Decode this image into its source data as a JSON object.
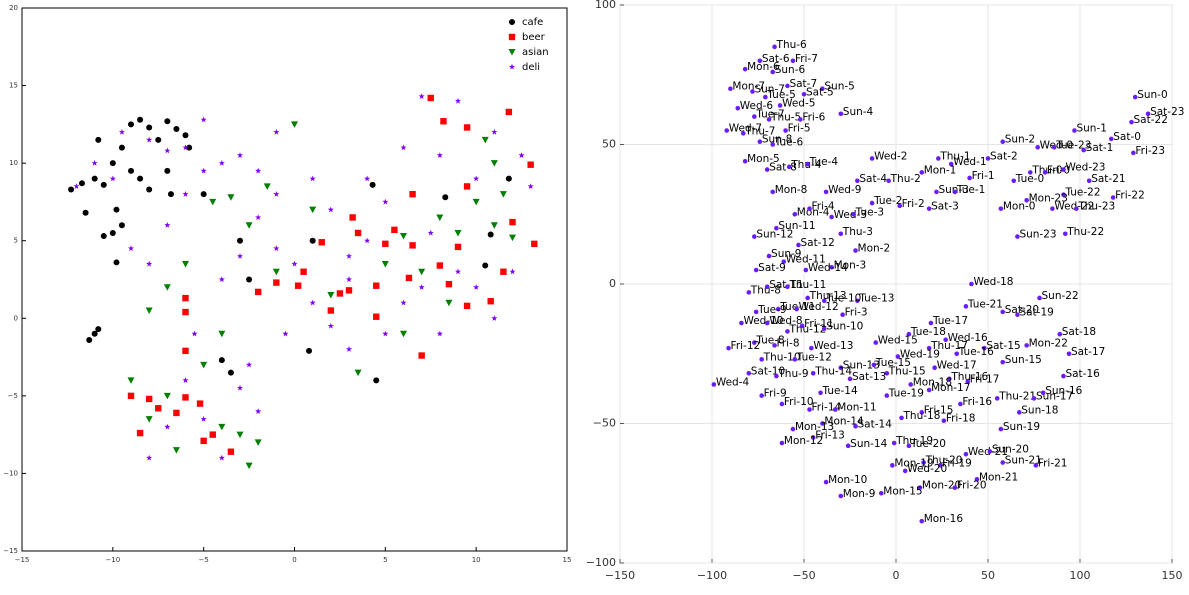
{
  "chart_data": [
    {
      "type": "scatter",
      "legend": "upper right",
      "grid": false,
      "xlim": [
        -15,
        15
      ],
      "ylim": [
        -15,
        20
      ],
      "xticks": [
        {
          "value": -15,
          "label": "−15"
        },
        {
          "value": -10,
          "label": "−10"
        },
        {
          "value": -5,
          "label": "−5"
        },
        0,
        5,
        10,
        15
      ],
      "yticks": [
        {
          "value": -15,
          "label": "−15"
        },
        {
          "value": -10,
          "label": "−10"
        },
        {
          "value": -5,
          "label": "−5"
        },
        0,
        5,
        10,
        15,
        20
      ],
      "series": [
        {
          "name": "cafe",
          "color": "#000000",
          "marker": "circle",
          "x": [
            -12.3,
            -11.7,
            -11,
            -10.5,
            -10,
            -9.5,
            -9,
            -8.5,
            -8,
            -7.5,
            -7,
            -6.5,
            -6,
            -5.8,
            -9.8,
            -9.5,
            -10,
            -8.5,
            -8,
            -7,
            -6.8,
            -9,
            -10.8,
            -11.5,
            -10.5,
            -9.8,
            -11,
            -11.3,
            -10.8,
            -5,
            -3.5,
            4.5,
            0.8,
            4.3,
            10.8,
            11.8,
            10.5,
            -3,
            1,
            -2.5,
            8.3,
            -4
          ],
          "y": [
            8.3,
            8.7,
            9,
            8.6,
            10,
            11,
            12.5,
            12.8,
            12.3,
            11.5,
            12.7,
            12.2,
            11.8,
            11,
            7,
            6,
            5.5,
            9,
            8.3,
            9.5,
            8,
            9.5,
            11.5,
            6.8,
            5.3,
            3.6,
            -1,
            -1.4,
            -0.7,
            8,
            -3.5,
            -4,
            -2.1,
            8.6,
            5.4,
            9,
            3.4,
            5,
            5,
            2.5,
            7.8,
            -2.7
          ]
        },
        {
          "name": "beer",
          "color": "#ff0000",
          "marker": "square",
          "x": [
            -9,
            -8.5,
            -8,
            -7.5,
            -6.5,
            -6,
            -5.2,
            -5,
            -4.5,
            -3.5,
            -6,
            -6,
            -6,
            -2,
            -1,
            0.2,
            0.5,
            1.5,
            2.5,
            3.2,
            3.5,
            4.5,
            5,
            5.5,
            6.3,
            6.5,
            7.5,
            8.2,
            9.5,
            11.8,
            13,
            12,
            13.2,
            11.5,
            10.8,
            9.5,
            8.5,
            8,
            9,
            6.5,
            7,
            4.5,
            2,
            3,
            9.5
          ],
          "y": [
            -5,
            -7.4,
            -5.2,
            -5.8,
            -6.1,
            -5.1,
            -5.5,
            -7.9,
            -7.5,
            -8.6,
            -2.1,
            0.4,
            1.3,
            1.7,
            2.3,
            2.1,
            3,
            4.9,
            1.6,
            6.5,
            5.5,
            2.1,
            4.8,
            5.7,
            2.6,
            4.7,
            14.2,
            12.7,
            12.3,
            13.3,
            9.9,
            6.2,
            4.8,
            3,
            1.1,
            0.8,
            2.2,
            3.4,
            4.6,
            8,
            -2.4,
            0.1,
            0.5,
            1.8,
            8.5
          ]
        },
        {
          "name": "asian",
          "color": "#008000",
          "marker": "triangle_down",
          "x": [
            -9,
            -8,
            -7,
            -6.5,
            -5,
            -4,
            -3,
            -2.5,
            -2,
            -6,
            -7,
            -8,
            -4.5,
            -3.5,
            -2.5,
            -1.5,
            0,
            1,
            2,
            3.5,
            5,
            6,
            7,
            8.5,
            9,
            10,
            10.5,
            11,
            11.5,
            12,
            11,
            8,
            6,
            -1,
            -4
          ],
          "y": [
            -4,
            -6.5,
            -5,
            -8.5,
            -3,
            -7,
            -7.5,
            -9.5,
            -8,
            3.5,
            2,
            0.5,
            7.5,
            7.8,
            6,
            8.5,
            12.5,
            7,
            1.5,
            -3.5,
            3.5,
            5.3,
            3,
            1,
            5.5,
            7.5,
            11.5,
            10,
            8,
            5.2,
            6,
            6.5,
            -1,
            3,
            -1
          ]
        },
        {
          "name": "deli",
          "color": "#7f00ff",
          "marker": "star",
          "x": [
            -12,
            -11,
            -10,
            -9.5,
            -8,
            -7,
            -6,
            -5,
            -9,
            -8,
            -7,
            -6,
            -5,
            -4,
            -3,
            -2,
            -1,
            -2,
            -3,
            -4,
            -5.5,
            -6,
            -7,
            -8,
            -5,
            -4,
            -3,
            -2,
            -1,
            0,
            1,
            2,
            3,
            4,
            5,
            6,
            7,
            8,
            9,
            10,
            11,
            12,
            13,
            12.5,
            11,
            9,
            7,
            8,
            10,
            6,
            4,
            3,
            1,
            -1,
            2,
            5,
            7.5,
            3,
            -0.5,
            -2.5
          ],
          "y": [
            8.5,
            10,
            9,
            12,
            11.5,
            10.8,
            11,
            12.8,
            4.5,
            3.5,
            6,
            8,
            9.5,
            10,
            10.5,
            9.5,
            8,
            6.5,
            4,
            2.5,
            -1,
            -4,
            -7,
            -9,
            -6.5,
            -9,
            -4.5,
            -6,
            4.5,
            3.5,
            1,
            -0.5,
            2.5,
            5,
            -1,
            1,
            2,
            -1,
            3,
            2,
            0,
            3,
            8.5,
            10.5,
            12,
            14,
            14.3,
            10.5,
            9,
            11,
            9,
            4,
            9,
            12,
            7,
            7.5,
            5.5,
            -2,
            -1,
            -3
          ]
        }
      ]
    },
    {
      "type": "scatter",
      "grid": true,
      "color": "#6a1cff",
      "xlim": [
        -150,
        150
      ],
      "ylim": [
        -100,
        100
      ],
      "xticks": [
        {
          "value": -150,
          "label": "−150"
        },
        {
          "value": -100,
          "label": "−100"
        },
        {
          "value": -50,
          "label": "−50"
        },
        0,
        50,
        100,
        150
      ],
      "yticks": [
        {
          "value": -100,
          "label": "−100"
        },
        {
          "value": -50,
          "label": "−50"
        },
        0,
        50,
        100
      ],
      "labels": [
        "Thu-6",
        "Sat-6",
        "Fri-7",
        "Mon-6",
        "Sun-6",
        "Mon-7",
        "Sat-7",
        "Sun-5",
        "Sun-7",
        "Tue-5",
        "Sat-5",
        "Wed-6",
        "Wed-5",
        "Tue-7",
        "Sun-4",
        "Thu-5",
        "Fri-6",
        "Wed-7",
        "Thu-7",
        "Fri-5",
        "Sun-8",
        "Tue-6",
        "Mon-5",
        "Sat-8",
        "Thu-4",
        "Tue-4",
        "Wed-2",
        "Thu-1",
        "Wed-1",
        "Mon-1",
        "Sat-2",
        "Sun-2",
        "Fri-1",
        "Tue-0",
        "Thu-0",
        "Fri-0",
        "Wed-0",
        "Tue-23",
        "Sat-1",
        "Sun-1",
        "Sat-0",
        "Fri-23",
        "Sun-0",
        "Sat-23",
        "Sat-22",
        "Wed-23",
        "Sat-21",
        "Tue-22",
        "Fri-22",
        "Mon-23",
        "Wed-22",
        "Thu-23",
        "Mon-0",
        "Sun-23",
        "Thu-22",
        "Mon-8",
        "Wed-9",
        "Sat-4",
        "Thu-2",
        "Sun-3",
        "Tue-1",
        "Tue-2",
        "Fri-2",
        "Sat-3",
        "Mon-4",
        "Fri-4",
        "Wed-3",
        "Tue-3",
        "Sun-11",
        "Sun-12",
        "Thu-3",
        "Sat-12",
        "Mon-2",
        "Sun-9",
        "Wed-11",
        "Mon-3",
        "Wed-14",
        "Sat-9",
        "Wed-18",
        "Sun-22",
        "Tue-21",
        "Sat-20",
        "Sat-19",
        "Sat-18",
        "Mon-22",
        "Sat-17",
        "Sun-15",
        "Sat-16",
        "Sat-15",
        "Tue-16",
        "Wed-16",
        "Tue-17",
        "Tue-18",
        "Wed-15",
        "Thu-17",
        "Wed-19",
        "Wed-17",
        "Thu-16",
        "Fri-17",
        "Thu-15",
        "Tue-15",
        "Sun-13",
        "Sat-13",
        "Mon-18",
        "Mon-17",
        "Thu-21",
        "Sun-17",
        "Sun-16",
        "Sun-18",
        "Fri-16",
        "Tue-19",
        "Fri-15",
        "Thu-18",
        "Fri-18",
        "Sun-19",
        "Tue-14",
        "Thu-14",
        "Thu-12",
        "Sun-10",
        "Fri-11",
        "Fri-3",
        "Tue-13",
        "Tue-10",
        "Thu-13",
        "Tue-11",
        "Wed-12",
        "Tue-9",
        "Thu-8",
        "Sat-11",
        "Thu-11",
        "Wed-10",
        "Wed-8",
        "Tue-8",
        "Fri-8",
        "Fri-12",
        "Wed-13",
        "Thu-10",
        "Tue-12",
        "Sat-10",
        "Thu-9",
        "Wed-4",
        "Fri-9",
        "Fri-10",
        "Fri-14",
        "Mon-11",
        "Mon-14",
        "Sat-14",
        "Mon-13",
        "Fri-13",
        "Mon-12",
        "Sun-14",
        "Thu-19",
        "Tue-20",
        "Wed-21",
        "Sun-20",
        "Sun-21",
        "Fri-21",
        "Thu-20",
        "Fri-19",
        "Mon-19",
        "Wed-20",
        "Mon-21",
        "Mon-20",
        "Fri-20",
        "Mon-10",
        "Mon-9",
        "Mon-15",
        "Mon-16"
      ],
      "x": [
        -66,
        -74,
        -56,
        -82,
        -67,
        -90,
        -59,
        -40,
        -78,
        -71,
        -50,
        -86,
        -63,
        -77,
        -30,
        -69,
        -52,
        -92,
        -83,
        -60,
        -74,
        -67,
        -82,
        -70,
        -58,
        -48,
        -13,
        23,
        30,
        14,
        50,
        58,
        40,
        64,
        73,
        81,
        77,
        86,
        102,
        97,
        117,
        129,
        130,
        137,
        128,
        91,
        105,
        91,
        118,
        71,
        85,
        98,
        57,
        66,
        92,
        -67,
        -38,
        -21,
        -4,
        22,
        32,
        -13,
        2,
        18,
        -55,
        -47,
        -35,
        -23,
        -65,
        -77,
        -30,
        -53,
        -22,
        -69,
        -61,
        -35,
        -49,
        -76,
        41,
        78,
        38,
        58,
        66,
        89,
        71,
        94,
        58,
        91,
        48,
        33,
        27,
        19,
        7,
        -11,
        18,
        1,
        21,
        29,
        39,
        -5,
        -12,
        -30,
        -25,
        8,
        18,
        55,
        75,
        80,
        67,
        35,
        -5,
        14,
        3,
        26,
        57,
        -41,
        -45,
        -59,
        -39,
        -51,
        -29,
        -21,
        -39,
        -48,
        -64,
        -54,
        -76,
        -80,
        -70,
        -59,
        -84,
        -70,
        -77,
        -66,
        -91,
        -46,
        -73,
        -55,
        -80,
        -65,
        -99,
        -73,
        -62,
        -47,
        -33,
        -40,
        -22,
        -56,
        -45,
        -62,
        -26,
        -1,
        7,
        38,
        51,
        58,
        76,
        15,
        24,
        -2,
        5,
        44,
        13,
        32,
        -38,
        -30,
        -8,
        14
      ],
      "y": [
        85,
        80,
        80,
        77,
        76,
        70,
        71,
        70,
        69,
        67,
        68,
        63,
        64,
        60,
        61,
        59,
        59,
        55,
        54,
        55,
        51,
        50,
        44,
        41,
        42,
        43,
        45,
        45,
        43,
        40,
        45,
        51,
        38,
        37,
        40,
        40,
        49,
        49,
        48,
        55,
        52,
        47,
        67,
        61,
        58,
        41,
        37,
        32,
        31,
        30,
        27,
        27,
        27,
        17,
        18,
        33,
        33,
        37,
        37,
        33,
        33,
        29,
        28,
        27,
        25,
        27,
        24,
        25,
        20,
        17,
        18,
        14,
        12,
        10,
        8,
        6,
        5,
        5,
        0,
        -5,
        -8,
        -10,
        -11,
        -18,
        -22,
        -25,
        -28,
        -33,
        -23,
        -25,
        -20,
        -14,
        -18,
        -21,
        -23,
        -26,
        -30,
        -34,
        -35,
        -32,
        -29,
        -30,
        -34,
        -36,
        -38,
        -41,
        -41,
        -39,
        -46,
        -43,
        -40,
        -46,
        -48,
        -49,
        -52,
        -39,
        -32,
        -17,
        -16,
        -15,
        -11,
        -6,
        -6,
        -5,
        -9,
        -9,
        -10,
        -3,
        -1,
        -1,
        -14,
        -14,
        -21,
        -22,
        -23,
        -23,
        -27,
        -27,
        -32,
        -33,
        -36,
        -40,
        -43,
        -45,
        -45,
        -50,
        -51,
        -52,
        -55,
        -57,
        -58,
        -57,
        -58,
        -61,
        -60,
        -64,
        -65,
        -64,
        -65,
        -65,
        -67,
        -70,
        -73,
        -73,
        -71,
        -76,
        -75,
        -85
      ]
    }
  ]
}
